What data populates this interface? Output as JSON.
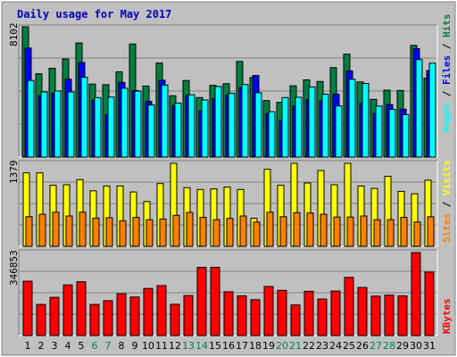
{
  "chart_data": [
    {
      "type": "bar",
      "title": "Daily usage for May 2017",
      "categories": [
        "1",
        "2",
        "3",
        "4",
        "5",
        "6",
        "7",
        "8",
        "9",
        "10",
        "11",
        "12",
        "13",
        "14",
        "15",
        "16",
        "17",
        "18",
        "19",
        "20",
        "21",
        "22",
        "23",
        "24",
        "25",
        "26",
        "27",
        "28",
        "29",
        "30",
        "31"
      ],
      "weekend_days": [
        "6",
        "7",
        "13",
        "14",
        "20",
        "21",
        "27",
        "28"
      ],
      "ylabel_max": "8102",
      "series": [
        {
          "name": "Hits",
          "color": "#008040",
          "values": [
            8102,
            5180,
            5520,
            6100,
            7100,
            4540,
            4500,
            5300,
            7030,
            4420,
            5850,
            3810,
            4760,
            3700,
            4460,
            4560,
            5950,
            4940,
            3510,
            3400,
            4430,
            4800,
            4700,
            5560,
            6400,
            4670,
            3590,
            4160,
            4140,
            6940,
            4900
          ]
        },
        {
          "name": "Files",
          "color": "#0000ff",
          "values": [
            6780,
            3810,
            3970,
            4840,
            5880,
            3540,
            2640,
            4640,
            4140,
            3460,
            4780,
            3210,
            3830,
            2870,
            3640,
            3860,
            4320,
            5070,
            2700,
            2290,
            3170,
            3570,
            3520,
            3910,
            5360,
            3340,
            2700,
            3270,
            2980,
            6740,
            5380
          ]
        },
        {
          "name": "Pages",
          "color": "#00ffff",
          "values": [
            4760,
            4050,
            4110,
            4050,
            4960,
            3700,
            3730,
            4280,
            4100,
            3240,
            4480,
            3360,
            3880,
            3550,
            4390,
            3960,
            4510,
            4000,
            2820,
            3700,
            3720,
            4360,
            3910,
            3180,
            4840,
            4580,
            3170,
            2970,
            2640,
            6060,
            5840
          ]
        }
      ]
    },
    {
      "type": "bar",
      "categories": [
        "1",
        "2",
        "3",
        "4",
        "5",
        "6",
        "7",
        "8",
        "9",
        "10",
        "11",
        "12",
        "13",
        "14",
        "15",
        "16",
        "17",
        "18",
        "19",
        "20",
        "21",
        "22",
        "23",
        "24",
        "25",
        "26",
        "27",
        "28",
        "29",
        "30",
        "31"
      ],
      "ylabel_max": "1379",
      "series": [
        {
          "name": "Visits",
          "color": "#ffff00",
          "values": [
            1221,
            1221,
            1014,
            1023,
            1108,
            923,
            1003,
            1003,
            903,
            744,
            1043,
            1379,
            974,
            944,
            953,
            984,
            944,
            467,
            1279,
            1014,
            1379,
            1053,
            1259,
            1023,
            1379,
            1003,
            963,
            1164,
            913,
            873,
            1099
          ]
        },
        {
          "name": "Sites",
          "color": "#ff8000",
          "values": [
            492,
            533,
            567,
            504,
            567,
            468,
            476,
            425,
            481,
            442,
            453,
            515,
            564,
            481,
            444,
            464,
            504,
            404,
            567,
            492,
            559,
            553,
            533,
            486,
            486,
            504,
            442,
            444,
            481,
            404,
            492
          ]
        }
      ]
    },
    {
      "type": "bar",
      "categories": [
        "1",
        "2",
        "3",
        "4",
        "5",
        "6",
        "7",
        "8",
        "9",
        "10",
        "11",
        "12",
        "13",
        "14",
        "15",
        "16",
        "17",
        "18",
        "19",
        "20",
        "21",
        "22",
        "23",
        "24",
        "25",
        "26",
        "27",
        "28",
        "29",
        "30",
        "31"
      ],
      "ylabel_max": "346853",
      "series": [
        {
          "name": "KBytes",
          "color": "#ff0000",
          "values": [
            227000,
            130000,
            160000,
            212000,
            225000,
            130000,
            146000,
            175000,
            161000,
            197000,
            209000,
            131000,
            167000,
            285000,
            285000,
            183000,
            166000,
            150000,
            205000,
            189000,
            128000,
            185000,
            153000,
            186000,
            243000,
            201000,
            165000,
            169000,
            166000,
            346853,
            265000
          ]
        }
      ]
    }
  ]
}
